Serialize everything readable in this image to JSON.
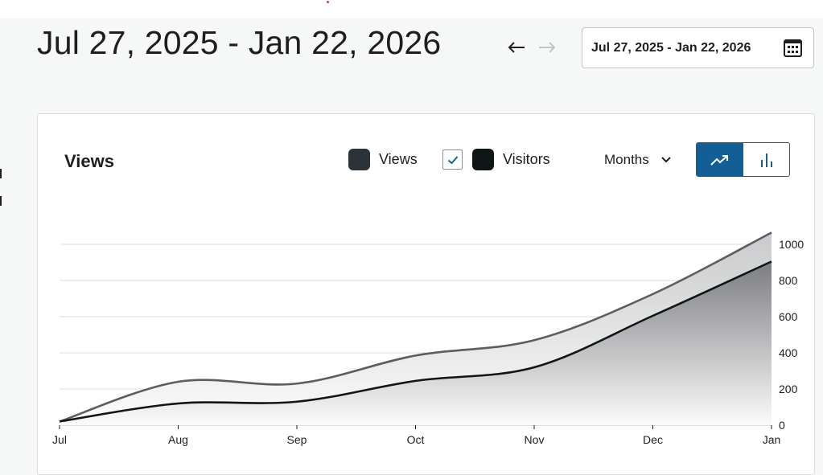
{
  "header": {
    "title": "Jul 27, 2025 - Jan 22, 2026",
    "date_range_value": "Jul 27, 2025 - Jan 22, 2026",
    "prev_icon": "arrow-left-icon",
    "next_icon": "arrow-right-icon",
    "calendar_icon": "calendar-icon"
  },
  "card": {
    "title": "Views",
    "legend": {
      "views_label": "Views",
      "visitors_label": "Visitors",
      "visitors_checked": true
    },
    "period": {
      "label": "Months",
      "icon": "chevron-down-icon"
    },
    "chart_toggle": {
      "line_icon": "trending-up-icon",
      "bar_icon": "bar-chart-icon",
      "active": "line"
    }
  },
  "colors": {
    "views_line": "#5a5d61",
    "visitors_line": "#101517",
    "views_swatch": "#2c3338",
    "visitors_swatch": "#101517",
    "accent": "#135e96",
    "grid": "#dcdcde"
  },
  "chart_data": {
    "type": "area",
    "categories": [
      "Jul",
      "Aug",
      "Sep",
      "Oct",
      "Nov",
      "Dec",
      "Jan"
    ],
    "series": [
      {
        "name": "Views",
        "values": [
          20,
          240,
          230,
          385,
          470,
          725,
          1065
        ]
      },
      {
        "name": "Visitors",
        "values": [
          20,
          120,
          130,
          245,
          320,
          605,
          905
        ]
      }
    ],
    "y_ticks": [
      0,
      200,
      400,
      600,
      800,
      1000
    ],
    "ylim": [
      0,
      1000
    ],
    "grid": true,
    "y_axis_position": "right"
  }
}
